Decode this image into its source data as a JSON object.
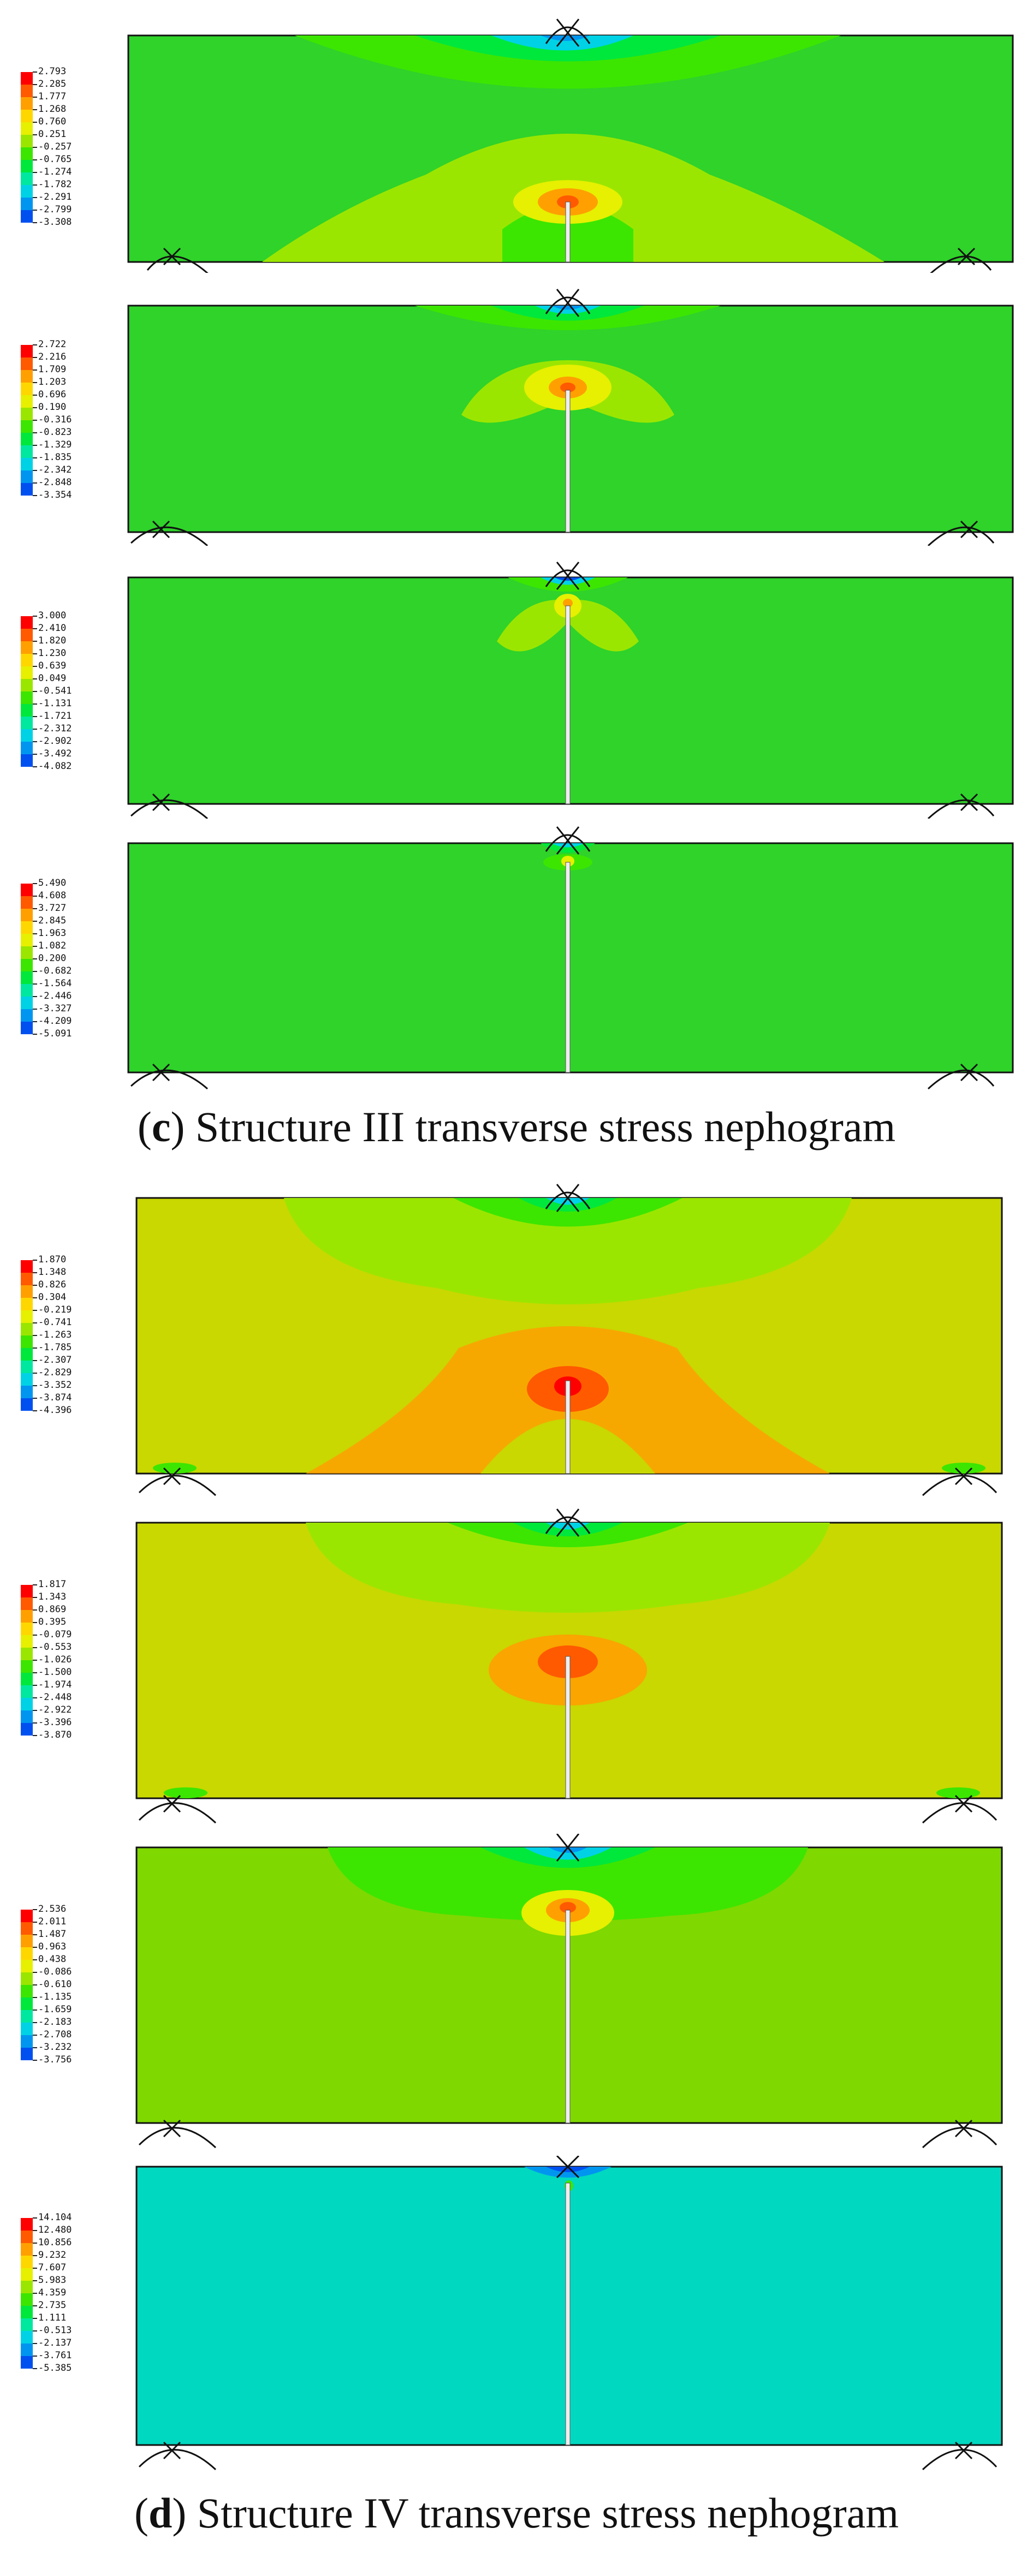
{
  "captions": {
    "c": {
      "letter": "c",
      "text": "Structure III transverse stress nephogram"
    },
    "d": {
      "letter": "d",
      "text": "Structure IV transverse stress nephogram"
    }
  },
  "colors": {
    "scale": [
      "#ff0000",
      "#ff5a00",
      "#ffa000",
      "#ffd700",
      "#e6f000",
      "#9be600",
      "#3ce600",
      "#00e83c",
      "#00e8a0",
      "#00d2e6",
      "#0096f0",
      "#0050f0",
      "#0000e6"
    ],
    "background_c": "#2fd32a",
    "background_d1": "#c8d800",
    "background_d2": "#c8d800",
    "background_d3": "#7fd800",
    "background_d4": "#00d8c0",
    "outline": "#111111"
  },
  "panels": [
    {
      "id": "c1",
      "group": "c",
      "legend": [
        "2.793",
        "2.285",
        "1.777",
        "1.268",
        "0.760",
        "0.251",
        "-0.257",
        "-0.765",
        "-1.274",
        "-1.782",
        "-2.291",
        "-2.799",
        "-3.308"
      ]
    },
    {
      "id": "c2",
      "group": "c",
      "legend": [
        "2.722",
        "2.216",
        "1.709",
        "1.203",
        "0.696",
        "0.190",
        "-0.316",
        "-0.823",
        "-1.329",
        "-1.835",
        "-2.342",
        "-2.848",
        "-3.354"
      ]
    },
    {
      "id": "c3",
      "group": "c",
      "legend": [
        "3.000",
        "2.410",
        "1.820",
        "1.230",
        "0.639",
        "0.049",
        "-0.541",
        "-1.131",
        "-1.721",
        "-2.312",
        "-2.902",
        "-3.492",
        "-4.082"
      ]
    },
    {
      "id": "c4",
      "group": "c",
      "legend": [
        "5.490",
        "4.608",
        "3.727",
        "2.845",
        "1.963",
        "1.082",
        "0.200",
        "-0.682",
        "-1.564",
        "-2.446",
        "-3.327",
        "-4.209",
        "-5.091"
      ]
    },
    {
      "id": "d1",
      "group": "d",
      "legend": [
        "1.870",
        "1.348",
        "0.826",
        "0.304",
        "-0.219",
        "-0.741",
        "-1.263",
        "-1.785",
        "-2.307",
        "-2.829",
        "-3.352",
        "-3.874",
        "-4.396"
      ]
    },
    {
      "id": "d2",
      "group": "d",
      "legend": [
        "1.817",
        "1.343",
        "0.869",
        "0.395",
        "-0.079",
        "-0.553",
        "-1.026",
        "-1.500",
        "-1.974",
        "-2.448",
        "-2.922",
        "-3.396",
        "-3.870"
      ]
    },
    {
      "id": "d3",
      "group": "d",
      "legend": [
        "2.536",
        "2.011",
        "1.487",
        "0.963",
        "0.438",
        "-0.086",
        "-0.610",
        "-1.135",
        "-1.659",
        "-2.183",
        "-2.708",
        "-3.232",
        "-3.756"
      ]
    },
    {
      "id": "d4",
      "group": "d",
      "legend": [
        "14.104",
        "12.480",
        "10.856",
        "9.232",
        "7.607",
        "5.983",
        "4.359",
        "2.735",
        "1.111",
        "-0.513",
        "-2.137",
        "-3.761",
        "-5.385"
      ]
    }
  ]
}
